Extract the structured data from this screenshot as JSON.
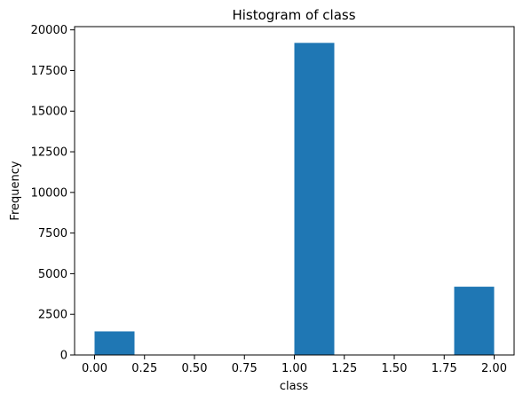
{
  "chart_data": {
    "type": "bar",
    "title": "Histogram of class",
    "xlabel": "class",
    "ylabel": "Frequency",
    "xlim": [
      -0.1,
      2.1
    ],
    "ylim": [
      0,
      20200
    ],
    "xticks": [
      0.0,
      0.25,
      0.5,
      0.75,
      1.0,
      1.25,
      1.5,
      1.75,
      2.0
    ],
    "xtick_labels": [
      "0.00",
      "0.25",
      "0.50",
      "0.75",
      "1.00",
      "1.25",
      "1.50",
      "1.75",
      "2.00"
    ],
    "yticks": [
      0,
      2500,
      5000,
      7500,
      10000,
      12500,
      15000,
      17500,
      20000
    ],
    "ytick_labels": [
      "0",
      "2500",
      "5000",
      "7500",
      "10000",
      "12500",
      "15000",
      "17500",
      "20000"
    ],
    "bins": [
      {
        "x0": 0.0,
        "x1": 0.2,
        "count": 1450
      },
      {
        "x0": 0.2,
        "x1": 0.4,
        "count": 0
      },
      {
        "x0": 0.4,
        "x1": 0.6,
        "count": 0
      },
      {
        "x0": 0.6,
        "x1": 0.8,
        "count": 0
      },
      {
        "x0": 0.8,
        "x1": 1.0,
        "count": 0
      },
      {
        "x0": 1.0,
        "x1": 1.2,
        "count": 19200
      },
      {
        "x0": 1.2,
        "x1": 1.4,
        "count": 0
      },
      {
        "x0": 1.4,
        "x1": 1.6,
        "count": 0
      },
      {
        "x0": 1.6,
        "x1": 1.8,
        "count": 0
      },
      {
        "x0": 1.8,
        "x1": 2.0,
        "count": 4200
      }
    ],
    "bar_color": "#1f77b4",
    "grid": false,
    "legend": "none"
  }
}
